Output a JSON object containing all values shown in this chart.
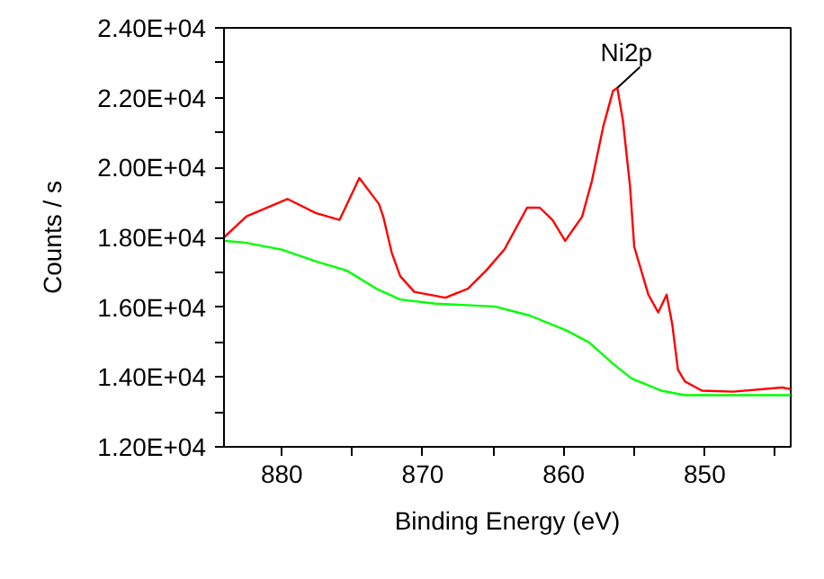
{
  "chart_data": {
    "type": "line",
    "xlabel": "Binding Energy (eV)",
    "ylabel": "Counts / s",
    "xlim": [
      884.1,
      843.9
    ],
    "ylim": [
      12000,
      24000
    ],
    "xticks": [
      880,
      {
        "value": 875,
        "label": null
      },
      870,
      {
        "value": 865,
        "label": null
      },
      860,
      {
        "value": 855,
        "label": null
      },
      850,
      {
        "value": 845,
        "label": null
      }
    ],
    "yticks": [
      {
        "value": 12000,
        "label": "1.20E+04"
      },
      {
        "value": 13000,
        "label": null
      },
      {
        "value": 14000,
        "label": "1.40E+04"
      },
      {
        "value": 15000,
        "label": null
      },
      {
        "value": 16000,
        "label": "1.60E+04"
      },
      {
        "value": 17000,
        "label": null
      },
      {
        "value": 18000,
        "label": "1.80E+04"
      },
      {
        "value": 19000,
        "label": null
      },
      {
        "value": 20000,
        "label": "2.00E+04"
      },
      {
        "value": 21000,
        "label": null
      },
      {
        "value": 22000,
        "label": "2.20E+04"
      },
      {
        "value": 23000,
        "label": null
      },
      {
        "value": 24000,
        "label": "2.40E+04"
      }
    ],
    "grid": false,
    "marker": "none",
    "line_style": "solid",
    "annotations": [
      {
        "text": "Ni2p",
        "x": 856.2,
        "y": 22280
      }
    ],
    "series": [
      {
        "color": "#ff0000",
        "x": [
          884.1,
          882.5,
          879.6,
          877.6,
          875.9,
          874.5,
          873.1,
          872.8,
          872.2,
          871.6,
          870.6,
          868.4,
          866.8,
          865.5,
          864.2,
          862.6,
          861.7,
          860.8,
          859.9,
          858.7,
          858.0,
          857.2,
          856.5,
          856.2,
          855.8,
          855.3,
          855.0,
          854.0,
          853.3,
          852.7,
          852.3,
          851.9,
          851.4,
          850.2,
          848.0,
          844.5,
          843.9
        ],
        "values": [
          18000,
          18600,
          19100,
          18700,
          18500,
          19700,
          18950,
          18590,
          17560,
          16890,
          16440,
          16270,
          16530,
          17050,
          17660,
          18850,
          18850,
          18500,
          17900,
          18590,
          19620,
          21170,
          22200,
          22280,
          21340,
          19470,
          17730,
          16360,
          15850,
          16360,
          15500,
          14210,
          13870,
          13610,
          13580,
          13700,
          13650
        ]
      },
      {
        "color": "#00ff00",
        "x": [
          884.1,
          882.6,
          880.0,
          877.5,
          875.4,
          873.3,
          871.6,
          869.1,
          864.9,
          862.4,
          859.8,
          858.2,
          856.5,
          855.2,
          853.1,
          851.4,
          843.9
        ],
        "values": [
          17900,
          17850,
          17650,
          17300,
          17050,
          16530,
          16220,
          16100,
          16020,
          15760,
          15330,
          14990,
          14380,
          13960,
          13610,
          13480,
          13480
        ]
      }
    ]
  }
}
